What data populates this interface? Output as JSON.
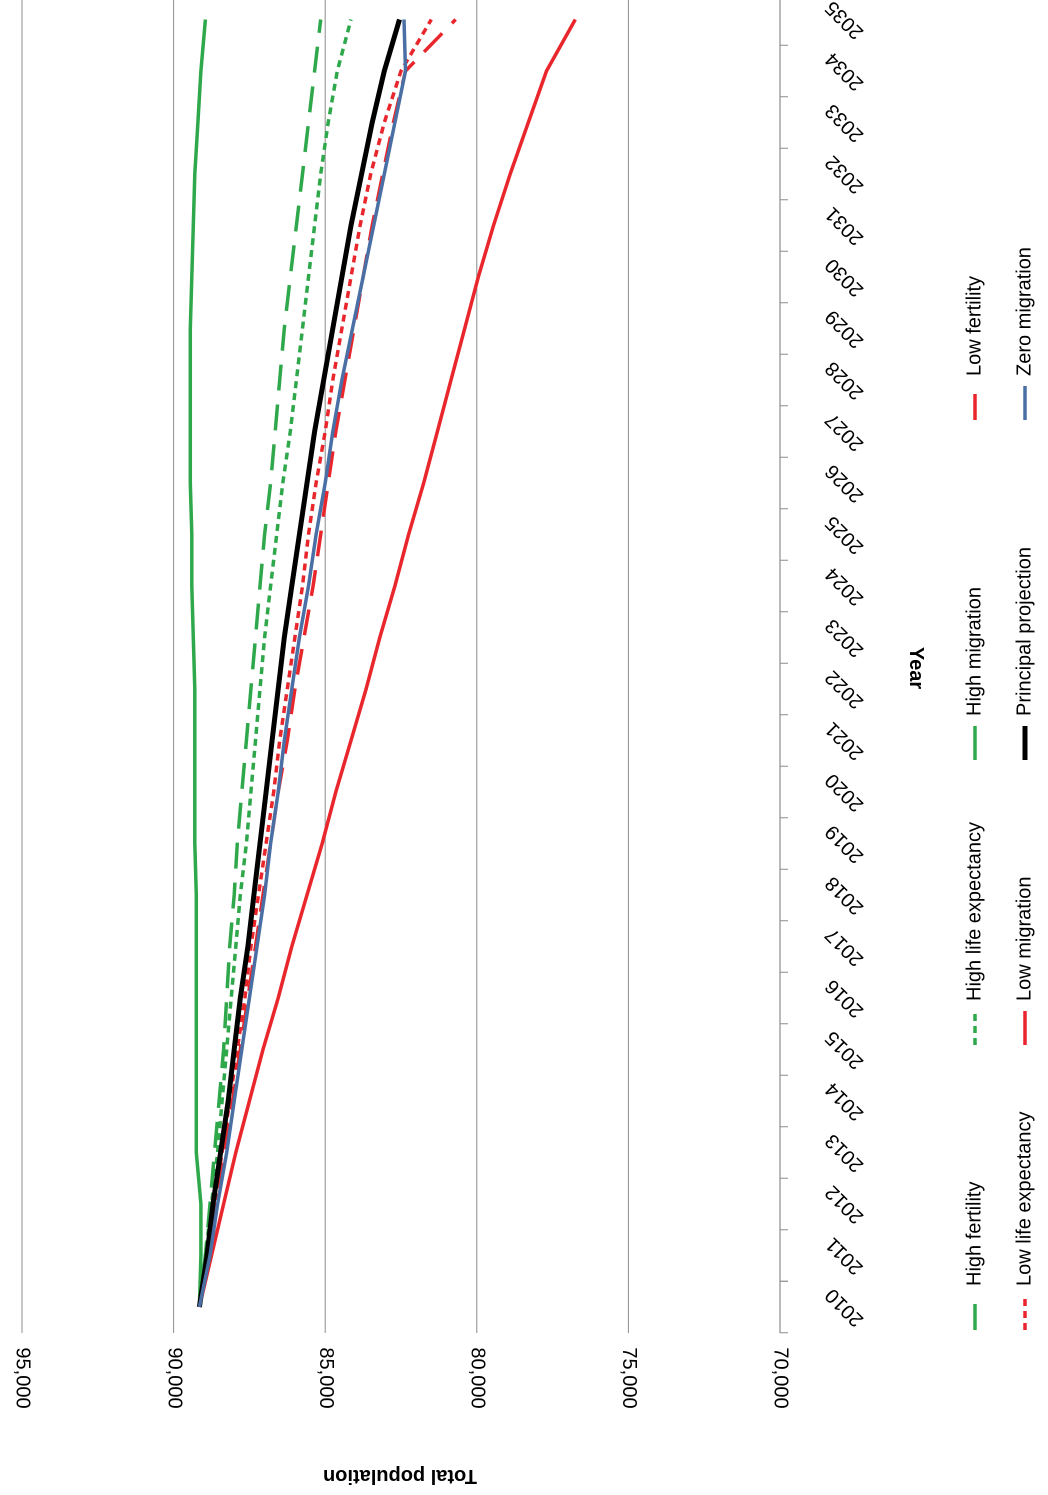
{
  "chart_data": {
    "type": "line",
    "orientation": "rotated-90-clockwise",
    "xlabel": "Year",
    "ylabel": "Total population",
    "x": [
      "2010",
      "2011",
      "2012",
      "2013",
      "2014",
      "2015",
      "2016",
      "2017",
      "2018",
      "2019",
      "2020",
      "2021",
      "2022",
      "2023",
      "2024",
      "2025",
      "2026",
      "2027",
      "2028",
      "2029",
      "2030",
      "2031",
      "2032",
      "2033",
      "2034",
      "2035"
    ],
    "yticks": [
      "70,000",
      "75,000",
      "80,000",
      "85,000",
      "90,000",
      "95,000"
    ],
    "ylim": [
      70000,
      95000
    ],
    "grid": true,
    "legend_position": "bottom",
    "series": [
      {
        "name": "High fertility",
        "color": "#2EA84A",
        "dash": "long",
        "values": [
          89150,
          88950,
          88800,
          88650,
          88500,
          88350,
          88250,
          88150,
          88000,
          87900,
          87750,
          87600,
          87450,
          87300,
          87150,
          87000,
          86800,
          86650,
          86500,
          86350,
          86150,
          85950,
          85750,
          85550,
          85350,
          85150
        ]
      },
      {
        "name": "High life expectancy",
        "color": "#2EA84A",
        "dash": "short",
        "values": [
          89150,
          88950,
          88750,
          88550,
          88400,
          88250,
          88100,
          87950,
          87800,
          87600,
          87450,
          87300,
          87150,
          87000,
          86800,
          86600,
          86400,
          86150,
          85950,
          85750,
          85550,
          85350,
          85150,
          84900,
          84600,
          84150
        ]
      },
      {
        "name": "High migration",
        "color": "#2EA84A",
        "dash": "solid",
        "values": [
          89150,
          89100,
          89100,
          89250,
          89250,
          89250,
          89250,
          89250,
          89250,
          89300,
          89300,
          89300,
          89300,
          89350,
          89400,
          89400,
          89450,
          89450,
          89450,
          89450,
          89400,
          89350,
          89300,
          89200,
          89100,
          88950
        ]
      },
      {
        "name": "Low fertility",
        "color": "#E8262C",
        "dash": "long",
        "values": [
          89150,
          88900,
          88650,
          88350,
          88050,
          87800,
          87550,
          87300,
          87050,
          86800,
          86550,
          86250,
          86000,
          85700,
          85400,
          85150,
          84900,
          84650,
          84350,
          84050,
          83750,
          83450,
          83100,
          82750,
          82350,
          80700
        ]
      },
      {
        "name": "Low life expectancy",
        "color": "#E8262C",
        "dash": "short",
        "values": [
          89150,
          88900,
          88650,
          88400,
          88150,
          87900,
          87650,
          87450,
          87200,
          86950,
          86700,
          86500,
          86250,
          86000,
          85750,
          85550,
          85300,
          85000,
          84750,
          84450,
          84150,
          83850,
          83500,
          83050,
          82500,
          81500
        ]
      },
      {
        "name": "Low migration",
        "color": "#E8262C",
        "dash": "solid",
        "values": [
          89150,
          88750,
          88350,
          87950,
          87500,
          87050,
          86550,
          86100,
          85600,
          85100,
          84650,
          84150,
          83650,
          83200,
          82700,
          82250,
          81750,
          81300,
          80850,
          80400,
          79950,
          79450,
          78900,
          78300,
          77700,
          76750
        ]
      },
      {
        "name": "Principal projection",
        "color": "#000000",
        "dash": "solid",
        "values": [
          89150,
          88900,
          88700,
          88450,
          88200,
          88000,
          87800,
          87550,
          87350,
          87150,
          86950,
          86750,
          86550,
          86350,
          86100,
          85850,
          85600,
          85350,
          85050,
          84750,
          84450,
          84150,
          83800,
          83450,
          83050,
          82550
        ]
      },
      {
        "name": "Zero migration",
        "color": "#4A6FA5",
        "dash": "solid",
        "values": [
          89150,
          88800,
          88550,
          88250,
          88000,
          87750,
          87500,
          87250,
          87000,
          86800,
          86550,
          86350,
          86100,
          85850,
          85550,
          85300,
          85000,
          84750,
          84450,
          84100,
          83750,
          83400,
          83050,
          82700,
          82350,
          82400
        ]
      }
    ]
  }
}
